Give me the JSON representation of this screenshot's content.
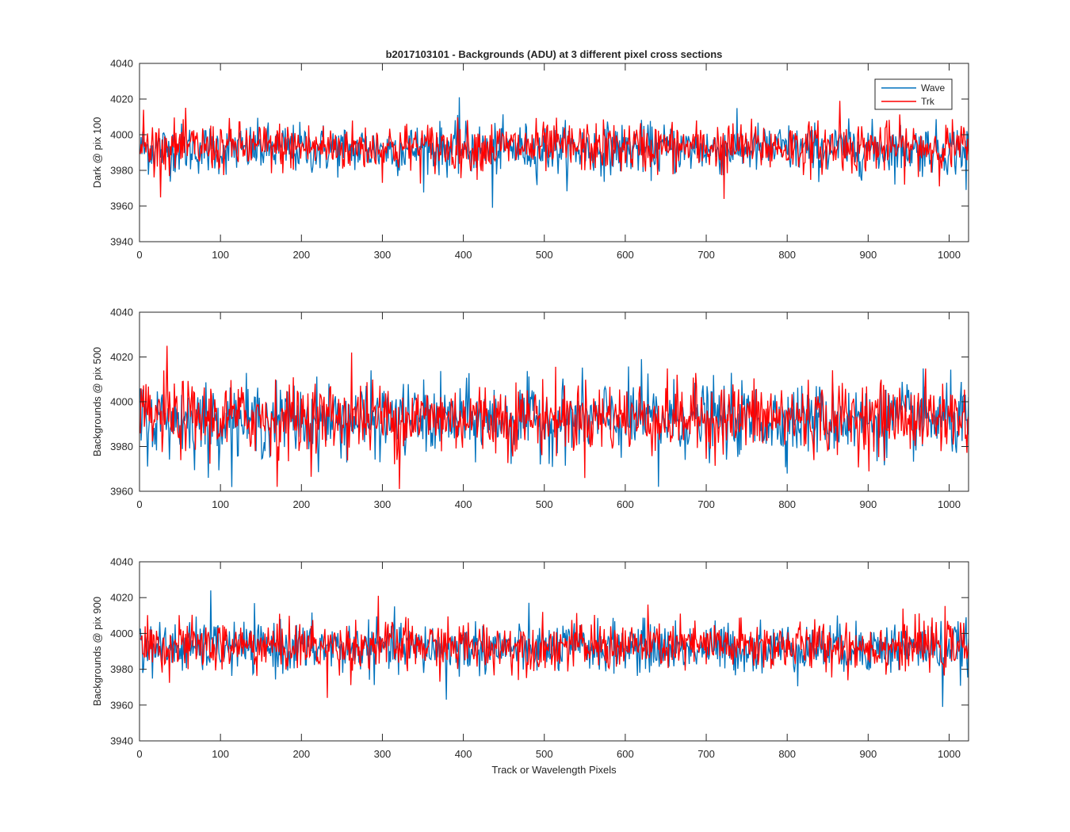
{
  "figure": {
    "title": "b2017103101 - Backgrounds (ADU) at 3 different pixel cross sections",
    "xlabel": "Track or Wavelength Pixels"
  },
  "legend": {
    "entries": [
      {
        "label": "Wave",
        "color": "#0072BD"
      },
      {
        "label": "Trk",
        "color": "#FF0000"
      }
    ],
    "placement": "top-right",
    "subplot": 0
  },
  "chart_data": [
    {
      "type": "line",
      "title": "b2017103101 - Backgrounds (ADU) at 3 different pixel cross sections",
      "xlabel": "",
      "ylabel": "Dark @ pix 100",
      "xlim": [
        0,
        1024
      ],
      "ylim": [
        3940,
        4040
      ],
      "xticks": [
        0,
        100,
        200,
        300,
        400,
        500,
        600,
        700,
        800,
        900,
        1000
      ],
      "yticks": [
        3940,
        3960,
        3980,
        4000,
        4020,
        4040
      ],
      "grid": false,
      "legend": "top-right",
      "x": "pixel index 1..1024",
      "series": [
        {
          "name": "Wave",
          "color": "#0072BD",
          "mean": 3992,
          "std": 7,
          "extremes": [
            [
              395,
              4021
            ],
            [
              436,
              3959
            ],
            [
              1021,
              3969
            ]
          ]
        },
        {
          "name": "Trk",
          "color": "#FF0000",
          "mean": 3993,
          "std": 7,
          "extremes": [
            [
              5,
              4014
            ],
            [
              722,
              3964
            ],
            [
              865,
              4019
            ]
          ]
        }
      ]
    },
    {
      "type": "line",
      "title": "",
      "xlabel": "",
      "ylabel": "Backgrounds @ pix 500",
      "xlim": [
        0,
        1024
      ],
      "ylim": [
        3960,
        4040
      ],
      "xticks": [
        0,
        100,
        200,
        300,
        400,
        500,
        600,
        700,
        800,
        900,
        1000
      ],
      "yticks": [
        3960,
        3980,
        4000,
        4020,
        4040
      ],
      "grid": false,
      "series": [
        {
          "name": "Wave",
          "color": "#0072BD",
          "mean": 3992,
          "std": 8,
          "extremes": [
            [
              620,
              4019
            ],
            [
              641,
              3962
            ],
            [
              85,
              3966
            ]
          ]
        },
        {
          "name": "Trk",
          "color": "#FF0000",
          "mean": 3993,
          "std": 8,
          "extremes": [
            [
              34,
              4025
            ],
            [
              262,
              4022
            ],
            [
              321,
              3961
            ],
            [
              170,
              3962
            ]
          ]
        }
      ]
    },
    {
      "type": "line",
      "title": "",
      "xlabel": "Track or Wavelength Pixels",
      "ylabel": "Backgrounds @ pix 900",
      "xlim": [
        0,
        1024
      ],
      "ylim": [
        3940,
        4040
      ],
      "xticks": [
        0,
        100,
        200,
        300,
        400,
        500,
        600,
        700,
        800,
        900,
        1000
      ],
      "yticks": [
        3940,
        3960,
        3980,
        4000,
        4020,
        4040
      ],
      "grid": false,
      "series": [
        {
          "name": "Wave",
          "color": "#0072BD",
          "mean": 3992,
          "std": 7,
          "extremes": [
            [
              88,
              4024
            ],
            [
              992,
              3959
            ],
            [
              379,
              3963
            ]
          ]
        },
        {
          "name": "Trk",
          "color": "#FF0000",
          "mean": 3993,
          "std": 7,
          "extremes": [
            [
              295,
              4021
            ],
            [
              232,
              3964
            ]
          ]
        }
      ]
    }
  ]
}
